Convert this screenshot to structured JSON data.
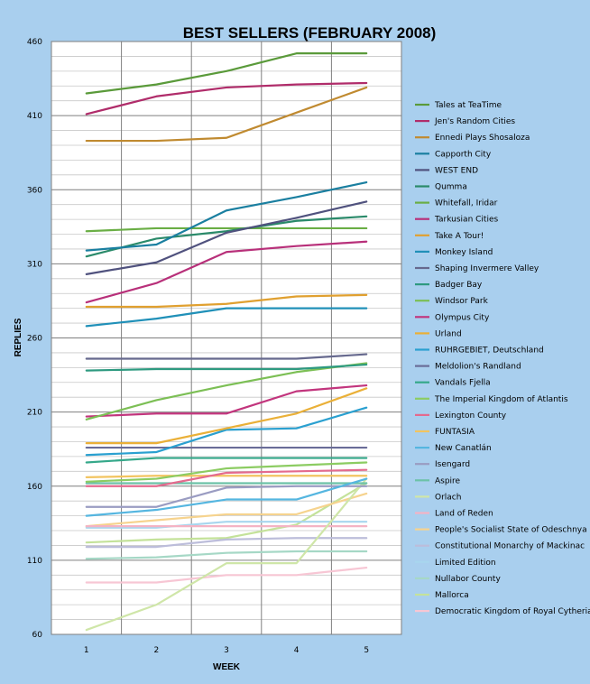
{
  "chart_data": {
    "type": "line",
    "title": "BEST SELLERS (FEBRUARY 2008)",
    "xlabel": "WEEK",
    "ylabel": "REPLIES",
    "x": [
      1,
      2,
      3,
      4,
      5
    ],
    "ylim": [
      60,
      460
    ],
    "yticks": [
      60,
      110,
      160,
      210,
      260,
      310,
      360,
      410,
      460
    ],
    "grid": true,
    "legend_position": "right",
    "series": [
      {
        "name": "Tales at TeaTime",
        "color": "#5a9a3a",
        "values": [
          425,
          431,
          440,
          452,
          452
        ]
      },
      {
        "name": "Jen's Random Cities",
        "color": "#b02c6a",
        "values": [
          411,
          423,
          429,
          431,
          432
        ]
      },
      {
        "name": "Ennedi Plays Shosaloza",
        "color": "#c08a30",
        "values": [
          393,
          393,
          395,
          412,
          429
        ]
      },
      {
        "name": "Capporth City",
        "color": "#1a7fa0",
        "values": [
          319,
          323,
          346,
          355,
          365
        ]
      },
      {
        "name": "WEST END",
        "color": "#50527e",
        "values": [
          303,
          311,
          331,
          341,
          352
        ]
      },
      {
        "name": "Qumma",
        "color": "#2a8a6a",
        "values": [
          315,
          327,
          332,
          339,
          342
        ]
      },
      {
        "name": "Whitefall, Iridar",
        "color": "#6aae45",
        "values": [
          332,
          334,
          334,
          334,
          334
        ]
      },
      {
        "name": "Tarkusian Cities",
        "color": "#b8307a",
        "values": [
          284,
          297,
          318,
          322,
          325
        ]
      },
      {
        "name": "Take A Tour!",
        "color": "#e0a030",
        "values": [
          281,
          281,
          283,
          288,
          289
        ]
      },
      {
        "name": "Monkey Island",
        "color": "#2090b8",
        "values": [
          268,
          273,
          280,
          280,
          280
        ]
      },
      {
        "name": "Shaping Invermere Valley",
        "color": "#66698e",
        "values": [
          246,
          246,
          246,
          246,
          249
        ]
      },
      {
        "name": "Badger Bay",
        "color": "#2e9a80",
        "values": [
          238,
          239,
          239,
          239,
          242
        ]
      },
      {
        "name": "Windsor Park",
        "color": "#7cbf55",
        "values": [
          205,
          218,
          228,
          237,
          243
        ]
      },
      {
        "name": "Olympus City",
        "color": "#c2357d",
        "values": [
          207,
          209,
          209,
          224,
          228
        ]
      },
      {
        "name": "Urland",
        "color": "#eab038",
        "values": [
          189,
          189,
          199,
          209,
          226
        ]
      },
      {
        "name": "RUHRGEBIET, Deutschland",
        "color": "#2aa0d0",
        "values": [
          181,
          183,
          198,
          199,
          213
        ]
      },
      {
        "name": "Meldolion's Randland",
        "color": "#6a6d98",
        "values": [
          186,
          186,
          186,
          186,
          186
        ]
      },
      {
        "name": "Vandals Fjella",
        "color": "#35a88a",
        "values": [
          176,
          179,
          179,
          179,
          179
        ]
      },
      {
        "name": "The Imperial Kingdom of Atlantis",
        "color": "#8ccc62",
        "values": [
          163,
          165,
          172,
          174,
          176
        ]
      },
      {
        "name": "Lexington County",
        "color": "#e46a8e",
        "values": [
          160,
          160,
          169,
          170,
          171
        ]
      },
      {
        "name": "FUNTASIA",
        "color": "#f2c460",
        "values": [
          166,
          167,
          167,
          167,
          167
        ]
      },
      {
        "name": "New Canatlán",
        "color": "#55b6e0",
        "values": [
          140,
          144,
          151,
          151,
          165
        ]
      },
      {
        "name": "Isengard",
        "color": "#9a9cc2",
        "values": [
          146,
          146,
          159,
          160,
          160
        ]
      },
      {
        "name": "Aspire",
        "color": "#6cc2a8",
        "values": [
          162,
          162,
          162,
          162,
          162
        ]
      },
      {
        "name": "Orlach",
        "color": "#cfe6a8",
        "values": [
          63,
          80,
          108,
          108,
          165
        ]
      },
      {
        "name": "Land of Reden",
        "color": "#f4b3c4",
        "values": [
          133,
          133,
          133,
          133,
          133
        ]
      },
      {
        "name": "People's Socialist State of Odeschnya",
        "color": "#f6d38e",
        "values": [
          133,
          137,
          141,
          141,
          155
        ]
      },
      {
        "name": "Constitutional Monarchy of Mackinac",
        "color": "#bcbdda",
        "values": [
          119,
          119,
          124,
          125,
          125
        ]
      },
      {
        "name": "Limited Edition",
        "color": "#a8d6ee",
        "values": [
          132,
          132,
          136,
          136,
          136
        ]
      },
      {
        "name": "Nullabor County",
        "color": "#a6d8c6",
        "values": [
          111,
          112,
          115,
          116,
          116
        ]
      },
      {
        "name": "Mallorca",
        "color": "#c4e29a",
        "values": [
          122,
          124,
          125,
          134,
          162
        ]
      },
      {
        "name": "Democratic Kingdom of Royal Cytheria",
        "color": "#f7c6d4",
        "values": [
          95,
          95,
          100,
          100,
          105
        ]
      }
    ]
  }
}
